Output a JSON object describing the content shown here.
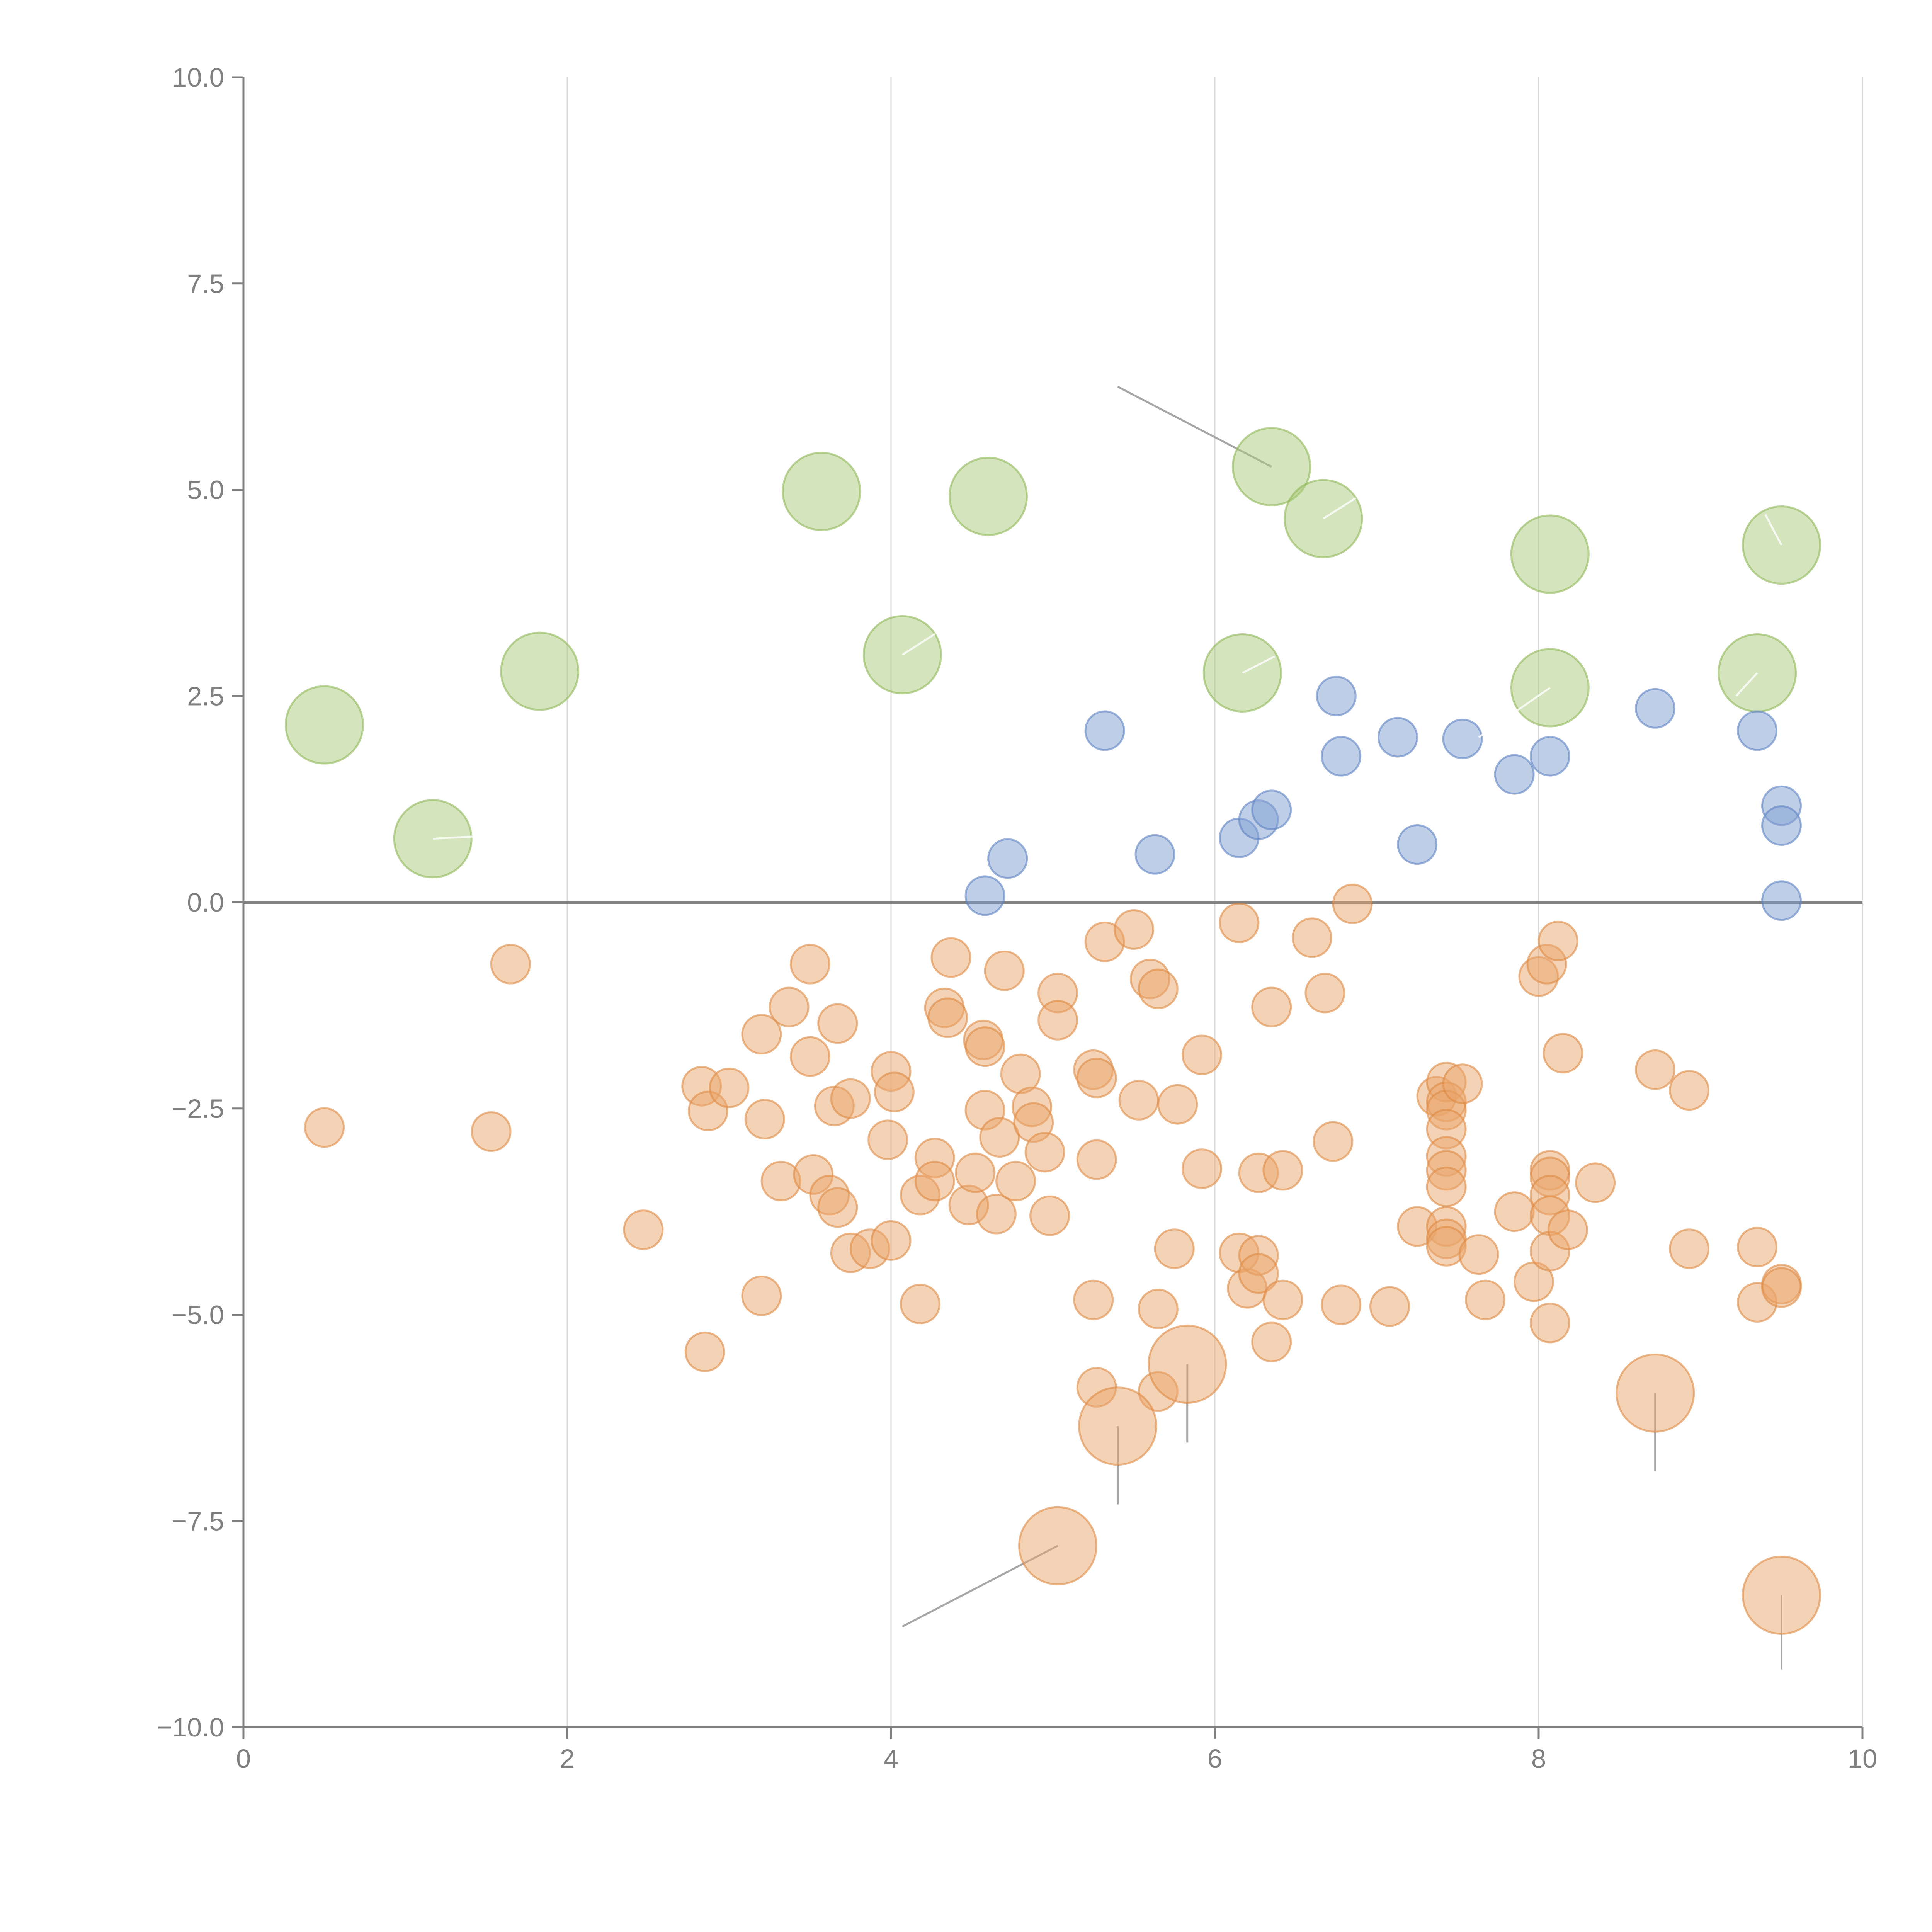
{
  "chart_data": {
    "type": "scatter",
    "title": "",
    "xlabel": "",
    "ylabel": "",
    "xlim": [
      0,
      10
    ],
    "ylim": [
      -10,
      10
    ],
    "x_ticks": [
      0,
      2,
      4,
      6,
      8,
      10
    ],
    "x_tick_labels": [
      "0",
      "2",
      "4",
      "6",
      "8",
      "10"
    ],
    "y_ticks": [
      -10,
      -7.5,
      -5,
      -2.5,
      0,
      2.5,
      5,
      7.5,
      10
    ],
    "y_tick_labels": [
      "−10.0",
      "−7.5",
      "−5.0",
      "−2.5",
      "0.0",
      "2.5",
      "5.0",
      "7.5",
      "10.0"
    ],
    "vertical_grid": true,
    "zero_line": true,
    "series": [
      {
        "name": "green",
        "color": "#a9c97a",
        "stroke": "#8fb859",
        "size": "large",
        "points": [
          [
            0.5,
            2.15
          ],
          [
            1.17,
            0.77
          ],
          [
            1.83,
            2.8
          ],
          [
            3.57,
            4.98
          ],
          [
            4.07,
            3.0
          ],
          [
            4.6,
            4.92
          ],
          [
            6.17,
            2.78
          ],
          [
            6.35,
            5.28
          ],
          [
            6.67,
            4.65
          ],
          [
            8.07,
            4.22
          ],
          [
            8.07,
            2.6
          ],
          [
            9.35,
            2.78
          ],
          [
            9.5,
            4.33
          ]
        ]
      },
      {
        "name": "blue",
        "color": "#7f9fd2",
        "stroke": "#5f82c2",
        "size": "small",
        "points": [
          [
            4.58,
            0.08
          ],
          [
            4.72,
            0.53
          ],
          [
            5.32,
            2.08
          ],
          [
            5.63,
            0.58
          ],
          [
            6.15,
            0.78
          ],
          [
            6.27,
            1.0
          ],
          [
            6.35,
            1.12
          ],
          [
            6.75,
            2.5
          ],
          [
            6.78,
            1.77
          ],
          [
            7.13,
            2.0
          ],
          [
            7.25,
            0.7
          ],
          [
            7.53,
            1.98
          ],
          [
            7.85,
            1.55
          ],
          [
            8.07,
            1.77
          ],
          [
            8.72,
            2.35
          ],
          [
            9.35,
            2.08
          ],
          [
            9.5,
            1.17
          ],
          [
            9.5,
            0.93
          ],
          [
            9.5,
            0.02
          ]
        ]
      },
      {
        "name": "orange",
        "color": "#e9a66c",
        "stroke": "#dd8a45",
        "size": "small",
        "points": [
          [
            0.5,
            -2.73
          ],
          [
            1.53,
            -2.78
          ],
          [
            1.65,
            -0.75
          ],
          [
            2.47,
            -3.97
          ],
          [
            2.83,
            -2.23
          ],
          [
            2.87,
            -2.53
          ],
          [
            2.85,
            -5.45
          ],
          [
            3.0,
            -2.25
          ],
          [
            3.22,
            -2.63
          ],
          [
            3.2,
            -1.6
          ],
          [
            3.2,
            -4.77
          ],
          [
            3.32,
            -3.38
          ],
          [
            3.37,
            -1.27
          ],
          [
            3.5,
            -0.75
          ],
          [
            3.5,
            -1.87
          ],
          [
            3.52,
            -3.3
          ],
          [
            3.62,
            -3.55
          ],
          [
            3.65,
            -2.47
          ],
          [
            3.67,
            -3.7
          ],
          [
            3.67,
            -1.47
          ],
          [
            3.75,
            -2.38
          ],
          [
            3.75,
            -4.25
          ],
          [
            3.87,
            -4.2
          ],
          [
            3.98,
            -2.88
          ],
          [
            4.0,
            -2.05
          ],
          [
            4.02,
            -2.3
          ],
          [
            4.0,
            -4.1
          ],
          [
            4.18,
            -3.55
          ],
          [
            4.18,
            -4.87
          ],
          [
            4.27,
            -3.1
          ],
          [
            4.27,
            -3.38
          ],
          [
            4.33,
            -1.28
          ],
          [
            4.35,
            -1.4
          ],
          [
            4.37,
            -0.67
          ],
          [
            4.48,
            -3.67
          ],
          [
            4.52,
            -3.28
          ],
          [
            4.57,
            -1.67
          ],
          [
            4.58,
            -1.75
          ],
          [
            4.58,
            -2.52
          ],
          [
            4.65,
            -3.78
          ],
          [
            4.67,
            -2.85
          ],
          [
            4.7,
            -0.83
          ],
          [
            4.77,
            -3.38
          ],
          [
            4.8,
            -2.08
          ],
          [
            4.87,
            -2.48
          ],
          [
            4.88,
            -2.67
          ],
          [
            4.95,
            -3.03
          ],
          [
            4.98,
            -3.8
          ],
          [
            5.03,
            -1.1
          ],
          [
            5.03,
            -1.43
          ],
          [
            5.25,
            -2.03
          ],
          [
            5.27,
            -2.13
          ],
          [
            5.27,
            -3.12
          ],
          [
            5.25,
            -4.82
          ],
          [
            5.27,
            -5.88
          ],
          [
            5.32,
            -0.48
          ],
          [
            5.5,
            -0.33
          ],
          [
            5.53,
            -2.4
          ],
          [
            5.6,
            -0.93
          ],
          [
            5.65,
            -1.05
          ],
          [
            5.65,
            -4.93
          ],
          [
            5.65,
            -5.93
          ],
          [
            5.75,
            -4.2
          ],
          [
            5.77,
            -2.45
          ],
          [
            5.92,
            -1.85
          ],
          [
            5.92,
            -3.23
          ],
          [
            6.15,
            -0.25
          ],
          [
            6.15,
            -4.25
          ],
          [
            6.2,
            -4.68
          ],
          [
            6.27,
            -3.28
          ],
          [
            6.27,
            -4.28
          ],
          [
            6.27,
            -4.5
          ],
          [
            6.35,
            -1.27
          ],
          [
            6.35,
            -5.33
          ],
          [
            6.42,
            -3.25
          ],
          [
            6.42,
            -4.82
          ],
          [
            6.6,
            -0.43
          ],
          [
            6.68,
            -1.1
          ],
          [
            6.73,
            -2.9
          ],
          [
            6.78,
            -4.88
          ],
          [
            6.85,
            -0.02
          ],
          [
            7.08,
            -4.9
          ],
          [
            7.25,
            -3.93
          ],
          [
            7.37,
            -2.35
          ],
          [
            7.43,
            -2.18
          ],
          [
            7.43,
            -2.42
          ],
          [
            7.43,
            -2.52
          ],
          [
            7.43,
            -2.75
          ],
          [
            7.43,
            -3.08
          ],
          [
            7.43,
            -3.25
          ],
          [
            7.43,
            -3.45
          ],
          [
            7.43,
            -3.93
          ],
          [
            7.43,
            -4.08
          ],
          [
            7.43,
            -4.17
          ],
          [
            7.53,
            -2.2
          ],
          [
            7.63,
            -4.27
          ],
          [
            7.67,
            -4.82
          ],
          [
            7.85,
            -3.75
          ],
          [
            7.97,
            -4.6
          ],
          [
            8.0,
            -0.9
          ],
          [
            8.05,
            -0.75
          ],
          [
            8.07,
            -3.25
          ],
          [
            8.07,
            -3.33
          ],
          [
            8.07,
            -3.55
          ],
          [
            8.07,
            -3.8
          ],
          [
            8.07,
            -4.23
          ],
          [
            8.07,
            -5.1
          ],
          [
            8.12,
            -0.47
          ],
          [
            8.15,
            -1.83
          ],
          [
            8.18,
            -3.97
          ],
          [
            8.35,
            -3.4
          ],
          [
            8.72,
            -2.03
          ],
          [
            8.93,
            -2.28
          ],
          [
            8.93,
            -4.2
          ],
          [
            9.35,
            -4.18
          ],
          [
            9.35,
            -4.85
          ],
          [
            9.5,
            -4.63
          ],
          [
            9.5,
            -4.67
          ]
        ]
      },
      {
        "name": "orange-large",
        "color": "#e9a66c",
        "stroke": "#dd8a45",
        "size": "large",
        "points": [
          [
            5.03,
            -7.8
          ],
          [
            5.4,
            -6.35
          ],
          [
            5.83,
            -5.6
          ],
          [
            8.72,
            -5.95
          ],
          [
            9.5,
            -8.4
          ]
        ]
      }
    ],
    "annotations": [
      {
        "from": [
          6.35,
          5.28
        ],
        "to": [
          5.4,
          6.25
        ],
        "style": "grey"
      },
      {
        "from": [
          5.03,
          -7.8
        ],
        "to": [
          4.07,
          -8.78
        ],
        "style": "grey"
      },
      {
        "from": [
          5.4,
          -6.35
        ],
        "to": [
          5.4,
          -7.3
        ],
        "style": "grey"
      },
      {
        "from": [
          5.83,
          -5.6
        ],
        "to": [
          5.83,
          -6.55
        ],
        "style": "grey"
      },
      {
        "from": [
          8.72,
          -5.95
        ],
        "to": [
          8.72,
          -6.9
        ],
        "style": "grey"
      },
      {
        "from": [
          9.5,
          -8.4
        ],
        "to": [
          9.5,
          -9.3
        ],
        "style": "grey"
      },
      {
        "from": [
          1.17,
          0.77
        ],
        "to": [
          1.45,
          0.8
        ],
        "style": "light"
      },
      {
        "from": [
          4.07,
          3.0
        ],
        "to": [
          4.27,
          3.25
        ],
        "style": "light"
      },
      {
        "from": [
          6.17,
          2.78
        ],
        "to": [
          6.37,
          2.98
        ],
        "style": "light"
      },
      {
        "from": [
          6.67,
          4.65
        ],
        "to": [
          6.87,
          4.9
        ],
        "style": "light"
      },
      {
        "from": [
          8.07,
          2.6
        ],
        "to": [
          7.63,
          2.0
        ],
        "style": "light"
      },
      {
        "from": [
          9.35,
          2.78
        ],
        "to": [
          9.22,
          2.5
        ],
        "style": "light"
      },
      {
        "from": [
          9.5,
          4.33
        ],
        "to": [
          9.4,
          4.7
        ],
        "style": "light"
      }
    ]
  }
}
